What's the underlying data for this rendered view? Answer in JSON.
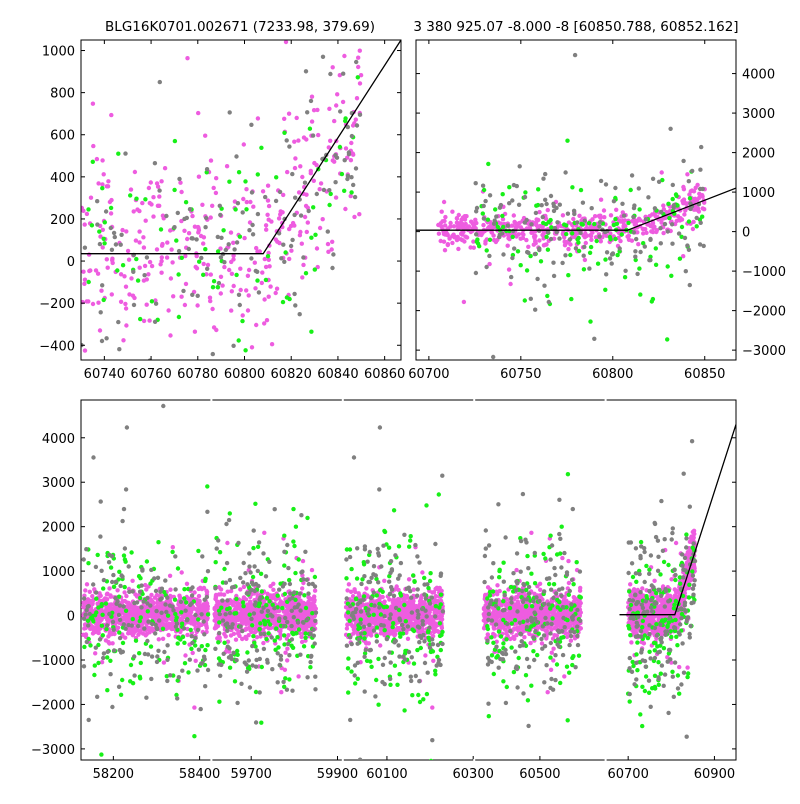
{
  "titles": {
    "left": "BLG16K0701.002671 (7233.98, 379.69)",
    "right": "3 380 925.07 -8.000 -8 [60850.788, 60852.162]"
  },
  "colors": {
    "series_magenta": "#ee5ce0",
    "series_green": "#17f017",
    "series_gray": "#808080",
    "model_line": "#000000",
    "axes": "#000000",
    "background": "#ffffff"
  },
  "chart_data": [
    {
      "type": "scatter",
      "title": "BLG16K0701.002671 (7233.98, 379.69)",
      "xlabel": "",
      "ylabel": "",
      "xlim": [
        60730,
        60867
      ],
      "ylim": [
        -470,
        1050
      ],
      "xticks": [
        60740,
        60760,
        60780,
        60800,
        60820,
        60840,
        60860
      ],
      "xtick_labels": [
        "60740",
        "60760",
        "60780",
        "60800",
        "60820",
        "60840",
        "60860"
      ],
      "yticks": [
        -400,
        -200,
        0,
        200,
        400,
        600,
        800,
        1000
      ],
      "ytick_labels": [
        "−400",
        "−200",
        "0",
        "200",
        "400",
        "600",
        "800",
        "1000"
      ],
      "yaxis_side": "left",
      "grid": false,
      "series": [
        {
          "color_key": "series_magenta",
          "count": 380,
          "x_range": [
            60730,
            60850
          ],
          "baseline": 40,
          "spread": 220,
          "weight": 1.0
        },
        {
          "color_key": "series_green",
          "count": 90,
          "x_range": [
            60730,
            60850
          ],
          "baseline": 40,
          "spread": 260,
          "weight": 0.6
        },
        {
          "color_key": "series_gray",
          "count": 140,
          "x_range": [
            60730,
            60850
          ],
          "baseline": 40,
          "spread": 240,
          "weight": 0.8
        }
      ],
      "model": {
        "x": [
          60730,
          60808,
          60867
        ],
        "y": [
          35,
          35,
          1050
        ]
      }
    },
    {
      "type": "scatter",
      "title": "3 380 925.07 -8.000 -8 [60850.788, 60852.162]",
      "xlabel": "",
      "ylabel": "",
      "xlim": [
        60693,
        60867
      ],
      "ylim": [
        -3250,
        4850
      ],
      "xticks": [
        60700,
        60750,
        60800,
        60850
      ],
      "xtick_labels": [
        "60700",
        "60750",
        "60800",
        "60850"
      ],
      "yticks": [
        -3000,
        -2000,
        -1000,
        0,
        1000,
        2000,
        3000,
        4000
      ],
      "ytick_labels": [
        "−3000",
        "−2000",
        "−1000",
        "0",
        "1000",
        "2000",
        "3000",
        "4000"
      ],
      "yaxis_side": "right",
      "grid": false,
      "series": [
        {
          "color_key": "series_magenta",
          "count": 520,
          "x_range": [
            60705,
            60850
          ],
          "baseline": 20,
          "spread": 220,
          "weight": 1.0
        },
        {
          "color_key": "series_green",
          "count": 130,
          "x_range": [
            60725,
            60850
          ],
          "baseline": -150,
          "spread": 700,
          "weight": 0.6
        },
        {
          "color_key": "series_gray",
          "count": 160,
          "x_range": [
            60725,
            60850
          ],
          "baseline": -100,
          "spread": 800,
          "weight": 0.8
        }
      ],
      "model": {
        "x": [
          60693,
          60808,
          60867
        ],
        "y": [
          35,
          35,
          1100
        ]
      }
    },
    {
      "type": "scatter",
      "title": "",
      "xlabel": "",
      "ylabel": "",
      "ylim": [
        -3250,
        4850
      ],
      "yticks": [
        -3000,
        -2000,
        -1000,
        0,
        1000,
        2000,
        3000,
        4000
      ],
      "ytick_labels": [
        "−3000",
        "−2000",
        "−1000",
        "0",
        "1000",
        "2000",
        "3000",
        "4000"
      ],
      "yaxis_side": "left",
      "grid": false,
      "broken_x_axis": true,
      "segments": [
        {
          "xlim": [
            58125,
            58425
          ],
          "xticks": [
            58200,
            58400
          ],
          "xtick_labels": [
            "58200",
            "58400"
          ],
          "season": [
            58130,
            58420
          ]
        },
        {
          "xlim": [
            59610,
            59910
          ],
          "xticks": [
            59700,
            59900
          ],
          "xtick_labels": [
            "59700",
            "59900"
          ],
          "season": [
            59615,
            59850
          ]
        },
        {
          "xlim": [
            60000,
            60300
          ],
          "xticks": [
            60100,
            60300
          ],
          "xtick_labels": [
            "60100",
            "60300"
          ],
          "season": [
            60005,
            60230
          ]
        },
        {
          "xlim": [
            60350,
            60650
          ],
          "xticks": [
            60500
          ],
          "xtick_labels": [
            "60500"
          ],
          "season": [
            60370,
            60595
          ]
        },
        {
          "xlim": [
            60650,
            60950
          ],
          "xticks": [
            60700,
            60900
          ],
          "xtick_labels": [
            "60700",
            "60900"
          ],
          "season": [
            60700,
            60855
          ]
        }
      ],
      "series": [
        {
          "color_key": "series_magenta",
          "count_per_season": 900,
          "baseline": -100,
          "spread": 230,
          "weight": 1.0
        },
        {
          "color_key": "series_green",
          "count_per_season": 140,
          "baseline": -250,
          "spread": 850,
          "weight": 0.6
        },
        {
          "color_key": "series_gray",
          "count_per_season": 160,
          "baseline": -200,
          "spread": 900,
          "weight": 0.8
        }
      ],
      "model": {
        "x": [
          60680,
          60808,
          60950
        ],
        "y": [
          20,
          20,
          4300
        ]
      }
    }
  ]
}
